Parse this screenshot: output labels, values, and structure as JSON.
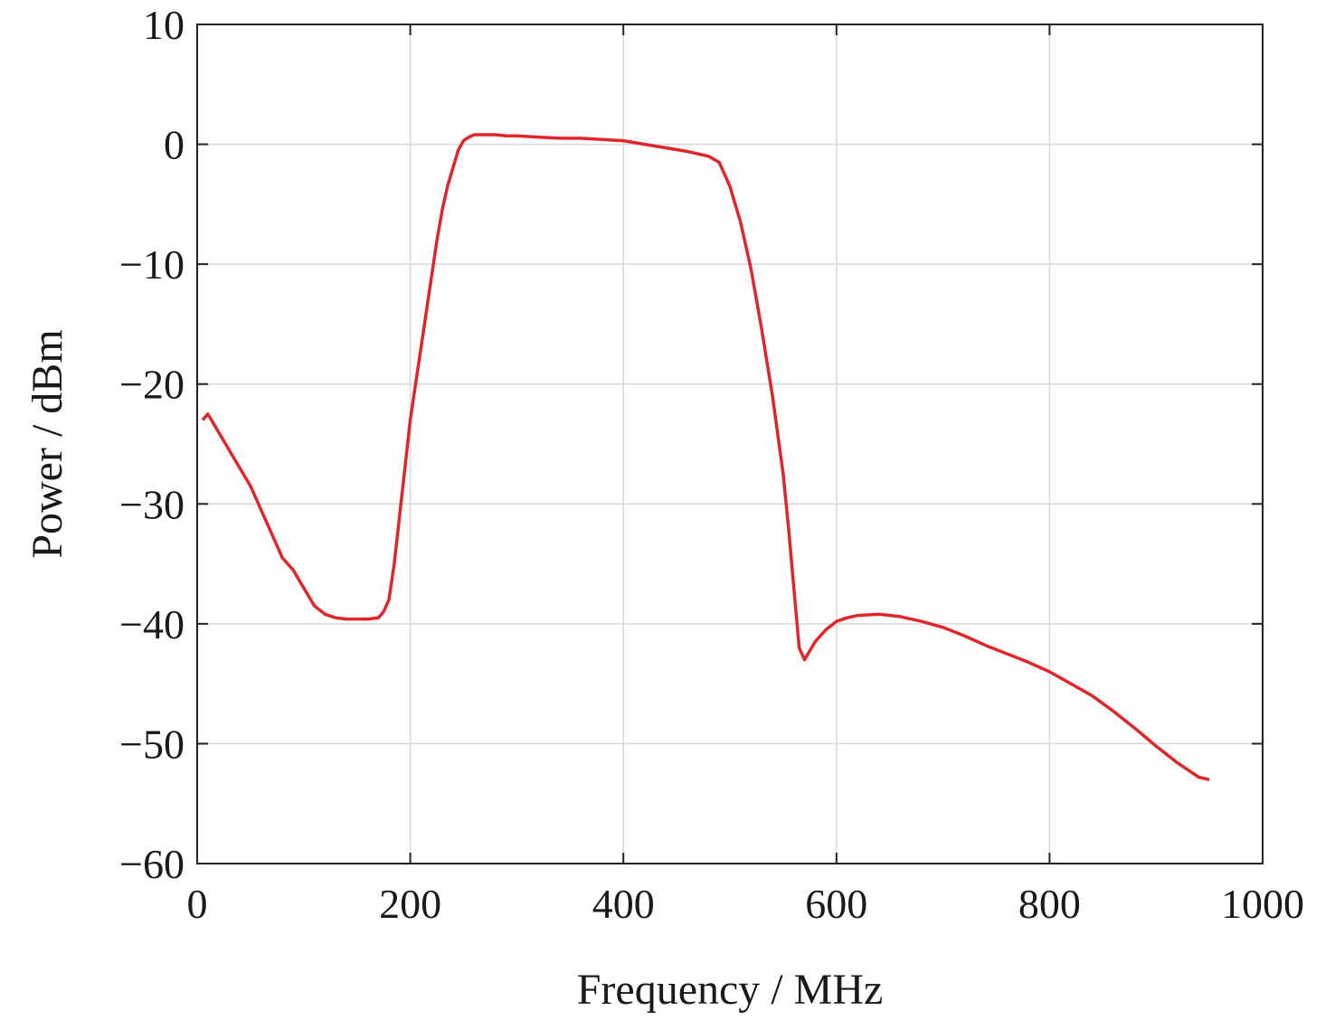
{
  "chart_data": {
    "type": "line",
    "xlabel": "Frequency / MHz",
    "ylabel": "Power / dBm",
    "xlim": [
      0,
      1000
    ],
    "ylim": [
      -60,
      10
    ],
    "xticks": [
      0,
      200,
      400,
      600,
      800,
      1000
    ],
    "yticks": [
      10,
      0,
      -10,
      -20,
      -30,
      -40,
      -50,
      -60
    ],
    "xtick_labels": [
      "0",
      "200",
      "400",
      "600",
      "800",
      "1000"
    ],
    "ytick_labels": [
      "10",
      "0",
      "−10",
      "−20",
      "−30",
      "−40",
      "−50",
      "−60"
    ],
    "grid": true,
    "series": [
      {
        "color": "#e0262b",
        "x": [
          5,
          10,
          20,
          30,
          40,
          50,
          60,
          70,
          80,
          90,
          100,
          110,
          120,
          130,
          140,
          150,
          160,
          170,
          175,
          180,
          185,
          190,
          195,
          200,
          205,
          210,
          215,
          220,
          225,
          230,
          235,
          240,
          245,
          250,
          255,
          260,
          270,
          280,
          290,
          300,
          320,
          340,
          360,
          380,
          400,
          420,
          440,
          460,
          480,
          490,
          500,
          510,
          520,
          530,
          540,
          550,
          555,
          560,
          565,
          570,
          580,
          590,
          600,
          610,
          620,
          640,
          660,
          680,
          700,
          720,
          740,
          760,
          780,
          800,
          820,
          840,
          860,
          880,
          900,
          920,
          940,
          950
        ],
        "y": [
          -23,
          -22.5,
          -24,
          -25.5,
          -27,
          -28.5,
          -30.5,
          -32.5,
          -34.5,
          -35.5,
          -37,
          -38.5,
          -39.2,
          -39.5,
          -39.6,
          -39.6,
          -39.6,
          -39.5,
          -39,
          -38,
          -35,
          -31,
          -27,
          -23,
          -20,
          -17,
          -14,
          -11,
          -8,
          -5.5,
          -3.5,
          -2,
          -0.5,
          0.3,
          0.6,
          0.8,
          0.8,
          0.8,
          0.7,
          0.7,
          0.6,
          0.5,
          0.5,
          0.4,
          0.3,
          0,
          -0.3,
          -0.6,
          -1,
          -1.5,
          -3.5,
          -6.5,
          -10.5,
          -15.5,
          -21,
          -27.5,
          -32,
          -37,
          -42,
          -43,
          -41.5,
          -40.5,
          -39.8,
          -39.5,
          -39.3,
          -39.2,
          -39.4,
          -39.8,
          -40.3,
          -41,
          -41.8,
          -42.5,
          -43.2,
          -44,
          -45,
          -46,
          -47.3,
          -48.7,
          -50.2,
          -51.6,
          -52.8,
          -53
        ]
      }
    ]
  }
}
